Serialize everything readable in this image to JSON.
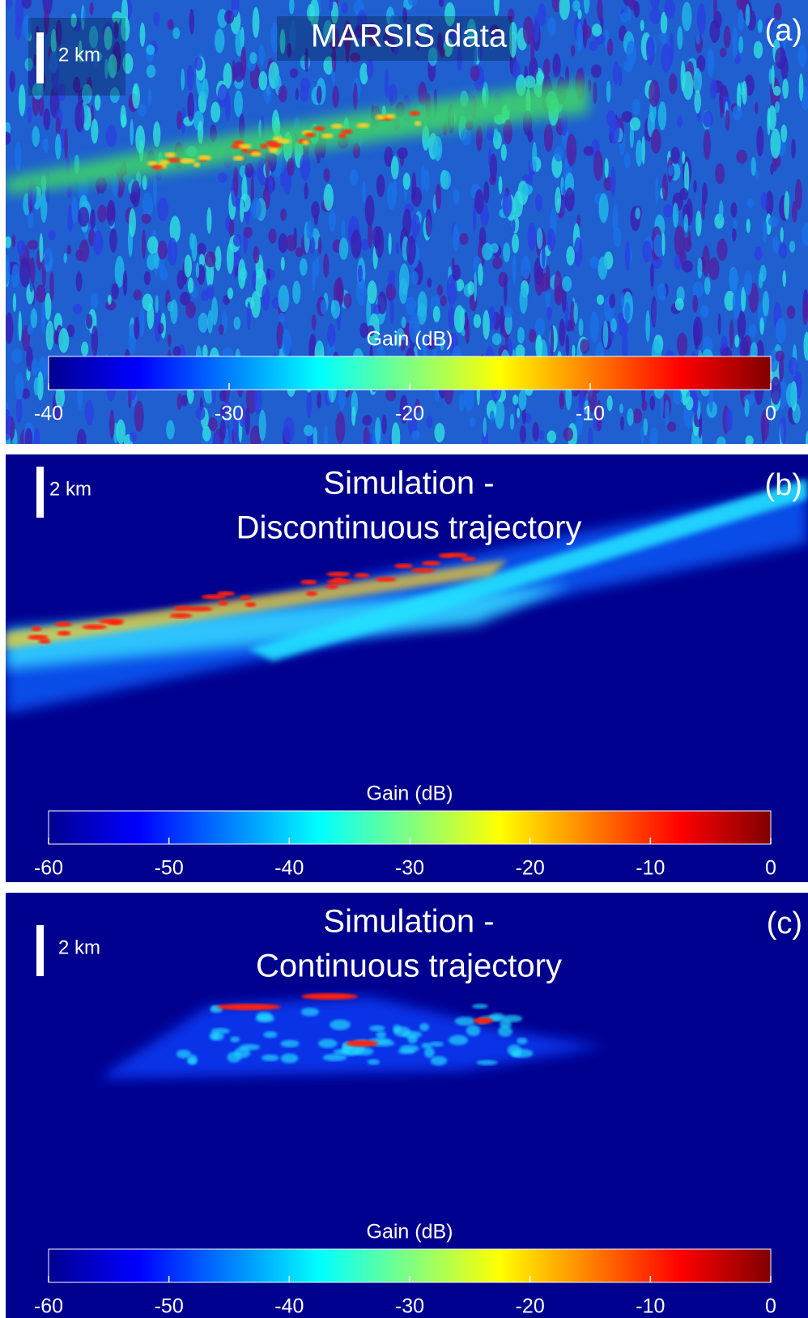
{
  "panels": [
    {
      "title_lines": [
        "MARSIS data"
      ],
      "label": "(a)",
      "scale_bar": "2 km",
      "colorbar": {
        "label": "Gain (dB)",
        "lim": [
          -40,
          0
        ],
        "ticks": [
          -40,
          -30,
          -20,
          -10,
          0
        ]
      }
    },
    {
      "title_lines": [
        "Simulation -",
        "Discontinuous trajectory"
      ],
      "label": "(b)",
      "scale_bar": "2 km",
      "colorbar": {
        "label": "Gain (dB)",
        "lim": [
          -60,
          0
        ],
        "ticks": [
          -60,
          -50,
          -40,
          -30,
          -20,
          -10,
          0
        ]
      }
    },
    {
      "title_lines": [
        "Simulation -",
        "Continuous trajectory"
      ],
      "label": "(c)",
      "scale_bar": "2 km",
      "colorbar": {
        "label": "Gain (dB)",
        "lim": [
          -60,
          0
        ],
        "ticks": [
          -60,
          -50,
          -40,
          -30,
          -20,
          -10,
          0
        ]
      }
    }
  ]
}
